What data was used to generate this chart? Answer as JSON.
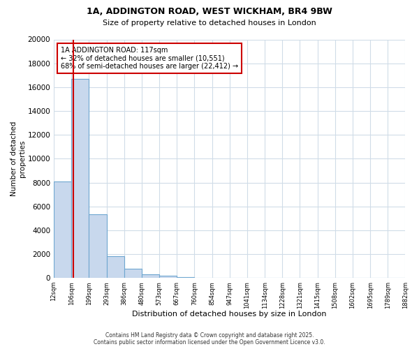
{
  "title1": "1A, ADDINGTON ROAD, WEST WICKHAM, BR4 9BW",
  "title2": "Size of property relative to detached houses in London",
  "xlabel": "Distribution of detached houses by size in London",
  "ylabel": "Number of detached\nproperties",
  "bin_labels": [
    "12sqm",
    "106sqm",
    "199sqm",
    "293sqm",
    "386sqm",
    "480sqm",
    "573sqm",
    "667sqm",
    "760sqm",
    "854sqm",
    "947sqm",
    "1041sqm",
    "1134sqm",
    "1228sqm",
    "1321sqm",
    "1415sqm",
    "1508sqm",
    "1602sqm",
    "1695sqm",
    "1789sqm",
    "1882sqm"
  ],
  "counts": [
    8100,
    16700,
    5350,
    1850,
    750,
    300,
    200,
    100,
    30,
    0,
    0,
    0,
    0,
    0,
    0,
    0,
    0,
    0,
    0,
    0
  ],
  "bar_color": "#c8d8ed",
  "bar_edge_color": "#6ea6d0",
  "property_size_idx": 1.15,
  "annotation_title": "1A ADDINGTON ROAD: 117sqm",
  "annotation_line1": "← 32% of detached houses are smaller (10,551)",
  "annotation_line2": "68% of semi-detached houses are larger (22,412) →",
  "vline_color": "#cc0000",
  "annotation_box_color": "#cc0000",
  "ylim": [
    0,
    20000
  ],
  "yticks": [
    0,
    2000,
    4000,
    6000,
    8000,
    10000,
    12000,
    14000,
    16000,
    18000,
    20000
  ],
  "footnote1": "Contains HM Land Registry data © Crown copyright and database right 2025.",
  "footnote2": "Contains public sector information licensed under the Open Government Licence v3.0.",
  "bg_color": "#ffffff",
  "grid_color": "#d0dce8"
}
